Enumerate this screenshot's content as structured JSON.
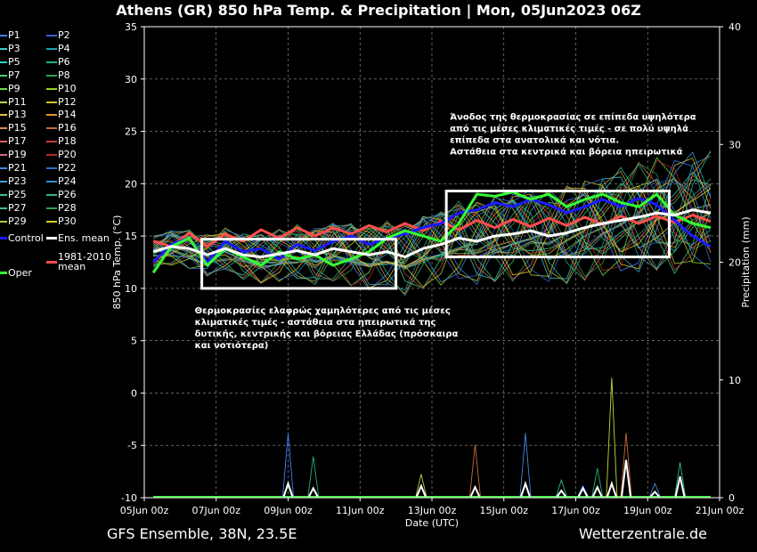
{
  "title": "Athens  (GR)  850 hPa Temp. & Precipitation | Mon, 05Jun2023 06Z",
  "footer": {
    "left": "GFS Ensemble, 38N, 23.5E",
    "right": "Wetterzentrale.de"
  },
  "chart_data": {
    "type": "line",
    "title": "Athens  (GR)  850 hPa Temp. & Precipitation | Mon, 05Jun2023 06Z",
    "xlabel": "Date (UTC)",
    "ylabel": "850 hPa Temp. (°C)",
    "y2label": "Precipitation (mm)",
    "xlim": [
      0,
      16
    ],
    "ylim": [
      -10,
      35
    ],
    "y2lim": [
      0,
      40
    ],
    "grid": true,
    "legend_position": "left-outside",
    "x_ticks": [
      "05Jun 00z",
      "07Jun 00z",
      "09Jun 00z",
      "11Jun 00z",
      "13Jun 00z",
      "15Jun 00z",
      "17Jun 00z",
      "19Jun 00z",
      "21Jun 00z"
    ],
    "y_ticks": [
      "-10",
      "-5",
      "0",
      "5",
      "10",
      "15",
      "20",
      "25",
      "30",
      "35"
    ],
    "y2_ticks": [
      "0",
      "10",
      "20",
      "30",
      "40"
    ],
    "series": [
      {
        "name": "Control",
        "color": "#1a1aff",
        "x": [
          0.25,
          0.75,
          1.25,
          1.75,
          2.25,
          2.75,
          3.25,
          3.75,
          4.25,
          4.75,
          5.25,
          5.75,
          6.25,
          6.75,
          7.25,
          7.75,
          8.25,
          8.75,
          9.25,
          9.75,
          10.25,
          10.75,
          11.25,
          11.75,
          12.25,
          12.75,
          13.25,
          13.75,
          14.25,
          14.75,
          15.25,
          15.75
        ],
        "values": [
          12.5,
          14.2,
          14.8,
          12.5,
          14.5,
          13.5,
          13.8,
          12.8,
          14.2,
          13.6,
          14.5,
          15.0,
          14.2,
          14.8,
          15.2,
          15.8,
          16.2,
          17.2,
          17.5,
          18.2,
          17.8,
          18.5,
          18.0,
          17.2,
          17.8,
          18.5,
          17.8,
          18.6,
          18.0,
          16.5,
          15.0,
          14.0
        ]
      },
      {
        "name": "Ens. mean",
        "color": "#ffffff",
        "x": [
          0.25,
          0.75,
          1.25,
          1.75,
          2.25,
          2.75,
          3.25,
          3.75,
          4.25,
          4.75,
          5.25,
          5.75,
          6.25,
          6.75,
          7.25,
          7.75,
          8.25,
          8.75,
          9.25,
          9.75,
          10.25,
          10.75,
          11.25,
          11.75,
          12.25,
          12.75,
          13.25,
          13.75,
          14.25,
          14.75,
          15.25,
          15.75
        ],
        "values": [
          13.5,
          14.0,
          13.8,
          13.2,
          13.8,
          13.2,
          13.0,
          13.3,
          13.6,
          13.2,
          13.8,
          13.5,
          13.2,
          13.5,
          13.0,
          13.8,
          14.2,
          14.8,
          14.5,
          15.0,
          15.2,
          15.5,
          15.0,
          15.3,
          15.8,
          16.2,
          16.5,
          16.8,
          17.2,
          17.0,
          17.5,
          17.2
        ]
      },
      {
        "name": "Oper",
        "color": "#33ff33",
        "x": [
          0.25,
          0.75,
          1.25,
          1.75,
          2.25,
          2.75,
          3.25,
          3.75,
          4.25,
          4.75,
          5.25,
          5.75,
          6.25,
          6.75,
          7.25,
          7.75,
          8.25,
          8.75,
          9.25,
          9.75,
          10.25,
          10.75,
          11.25,
          11.75,
          12.25,
          12.75,
          13.25,
          13.75,
          14.25,
          14.75,
          15.25,
          15.75
        ],
        "values": [
          11.5,
          14.0,
          14.8,
          12.2,
          13.8,
          13.0,
          12.2,
          13.5,
          12.8,
          13.2,
          12.2,
          12.8,
          13.5,
          14.8,
          15.5,
          15.0,
          14.5,
          16.2,
          19.0,
          18.8,
          19.2,
          18.5,
          19.0,
          17.8,
          18.5,
          19.0,
          18.2,
          17.8,
          19.0,
          17.0,
          16.2,
          15.8
        ]
      },
      {
        "name": "1981-2010 mean",
        "color": "#ff4d4d",
        "x": [
          0.25,
          0.75,
          1.25,
          1.75,
          2.25,
          2.75,
          3.25,
          3.75,
          4.25,
          4.75,
          5.25,
          5.75,
          6.25,
          6.75,
          7.25,
          7.75,
          8.25,
          8.75,
          9.25,
          9.75,
          10.25,
          10.75,
          11.25,
          11.75,
          12.25,
          12.75,
          13.25,
          13.75,
          14.25,
          14.75,
          15.25,
          15.75
        ],
        "values": [
          14.5,
          14.0,
          15.3,
          14.0,
          15.2,
          14.5,
          15.6,
          14.8,
          15.8,
          15.0,
          15.8,
          15.2,
          16.0,
          15.4,
          16.2,
          15.5,
          16.4,
          15.6,
          16.5,
          15.8,
          16.6,
          15.9,
          16.7,
          16.0,
          16.8,
          16.1,
          16.9,
          16.2,
          16.9,
          16.3,
          17.0,
          16.4
        ]
      }
    ],
    "member_labels": [
      "P1",
      "P2",
      "P3",
      "P4",
      "P5",
      "P6",
      "P7",
      "P8",
      "P9",
      "P10",
      "P11",
      "P12",
      "P13",
      "P14",
      "P15",
      "P16",
      "P17",
      "P18",
      "P19",
      "P20",
      "P21",
      "P22",
      "P23",
      "P24",
      "P25",
      "P26",
      "P27",
      "P28",
      "P29",
      "P30"
    ],
    "member_colors": [
      "#3f7fff",
      "#3a5fd9",
      "#33cccc",
      "#1fa0b5",
      "#26d0c6",
      "#22b07d",
      "#40d080",
      "#2ea44f",
      "#66dd44",
      "#9ad21e",
      "#c8d43a",
      "#d4c02a",
      "#e0c22b",
      "#e09a1f",
      "#e08a50",
      "#c86a3a",
      "#e06060",
      "#c84040",
      "#d86a7a",
      "#b02a2a",
      "#3f86e0",
      "#2a70c8",
      "#42a0d8",
      "#2f8fd0",
      "#30c0a0",
      "#30b88a",
      "#40c080",
      "#2f9c50",
      "#a4d430",
      "#ddd020"
    ],
    "precipitation": {
      "unit": "mm",
      "x": [
        4.0,
        4.7,
        7.7,
        9.2,
        10.6,
        11.6,
        12.2,
        12.6,
        13.0,
        13.4,
        14.2,
        14.9
      ],
      "values": [
        1.2,
        0.8,
        1.0,
        0.9,
        1.2,
        0.6,
        0.8,
        0.9,
        1.2,
        3.2,
        0.5,
        1.8
      ],
      "max_member_values": [
        5.5,
        3.5,
        2.0,
        4.5,
        5.5,
        1.5,
        1.0,
        2.5,
        10.2,
        5.5,
        1.2,
        3.0
      ]
    },
    "annotations": [
      {
        "text": "Θερμοκρασίες ελαφρώς χαμηλότερες από τις μέσες κλιματικές τιμές - αστάθεια στα ηπειρωτικά της δυτικής, κεντρικής και βόρειας Ελλάδας (πρόσκαιρα και νοτιότερα)",
        "lines": [
          "Θερμοκρασίες ελαφρώς χαμηλότερες από τις μέσες",
          "κλιματικές τιμές - αστάθεια στα ηπειρωτικά της",
          "δυτικής, κεντρικής και βόρειας Ελλάδας (πρόσκαιρα",
          "και νοτιότερα)"
        ],
        "box": {
          "x": [
            1.6,
            7.0
          ],
          "y": [
            10.0,
            14.7
          ]
        }
      },
      {
        "text": "Άνοδος της θερμοκρασίας σε επίπεδα υψηλότερα από τις μέσες κλιματικές τιμές - σε πολύ υψηλά επίπεδα στα ανατολικά και νότια. Αστάθεια στα κεντρικά και βόρεια ηπειρωτικά",
        "lines": [
          "Άνοδος της θερμοκρασίας σε επίπεδα υψηλότερα",
          "από τις μέσες κλιματικές τιμές - σε πολύ υψηλά",
          "επίπεδα στα ανατολικά και νότια.",
          "Αστάθεια στα κεντρικά και βόρεια ηπειρωτικά"
        ],
        "box": {
          "x": [
            8.4,
            14.6
          ],
          "y": [
            13.0,
            19.3
          ]
        }
      }
    ]
  },
  "legend": {
    "items": [
      {
        "label": "P1",
        "color": "#3f7fff"
      },
      {
        "label": "P2",
        "color": "#3a5fd9"
      },
      {
        "label": "P3",
        "color": "#33cccc"
      },
      {
        "label": "P4",
        "color": "#1fa0b5"
      },
      {
        "label": "P5",
        "color": "#26d0c6"
      },
      {
        "label": "P6",
        "color": "#22b07d"
      },
      {
        "label": "P7",
        "color": "#40d080"
      },
      {
        "label": "P8",
        "color": "#2ea44f"
      },
      {
        "label": "P9",
        "color": "#66dd44"
      },
      {
        "label": "P10",
        "color": "#9ad21e"
      },
      {
        "label": "P11",
        "color": "#c8d43a"
      },
      {
        "label": "P12",
        "color": "#d4c02a"
      },
      {
        "label": "P13",
        "color": "#e0c22b"
      },
      {
        "label": "P14",
        "color": "#e09a1f"
      },
      {
        "label": "P15",
        "color": "#e08a50"
      },
      {
        "label": "P16",
        "color": "#c86a3a"
      },
      {
        "label": "P17",
        "color": "#e06060"
      },
      {
        "label": "P18",
        "color": "#c84040"
      },
      {
        "label": "P19",
        "color": "#d86a7a"
      },
      {
        "label": "P20",
        "color": "#b02a2a"
      },
      {
        "label": "P21",
        "color": "#3f86e0"
      },
      {
        "label": "P22",
        "color": "#2a70c8"
      },
      {
        "label": "P23",
        "color": "#42a0d8"
      },
      {
        "label": "P24",
        "color": "#2f8fd0"
      },
      {
        "label": "P25",
        "color": "#30c0a0"
      },
      {
        "label": "P26",
        "color": "#30b88a"
      },
      {
        "label": "P27",
        "color": "#40c080"
      },
      {
        "label": "P28",
        "color": "#2f9c50"
      },
      {
        "label": "P29",
        "color": "#a4d430"
      },
      {
        "label": "P30",
        "color": "#ddd020"
      },
      {
        "label": "Control",
        "color": "#1a1aff"
      },
      {
        "label": "Ens. mean",
        "color": "#ffffff"
      },
      {
        "label": "Oper",
        "color": "#33ff33"
      },
      {
        "label": "1981-2010 mean",
        "color": "#ff4d4d"
      }
    ]
  }
}
